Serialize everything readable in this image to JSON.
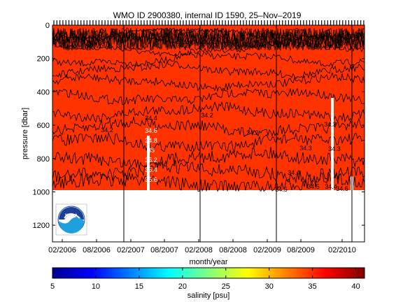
{
  "chart_data": {
    "type": "heatmap",
    "title": "WMO ID 2900380, internal ID 1590, 25–Nov–2019",
    "xlabel": "month/year",
    "ylabel": "pressure [dbar]",
    "colorbar_label": "salinity [psu]",
    "x_ticks": [
      "02/2006",
      "08/2006",
      "02/2007",
      "08/2007",
      "02/2008",
      "08/2008",
      "02/2009",
      "08/2009",
      "02/2010"
    ],
    "y_ticks": [
      "0",
      "200",
      "400",
      "600",
      "800",
      "1000",
      "1200"
    ],
    "y_range": [
      0,
      1300
    ],
    "y_reversed": true,
    "data_depth_max": 1000,
    "colorbar_ticks": [
      "5",
      "10",
      "15",
      "20",
      "25",
      "30",
      "35",
      "40"
    ],
    "colorbar_range": [
      5,
      41
    ],
    "colormap": [
      "#00008f",
      "#0000ff",
      "#0080ff",
      "#00ffff",
      "#80ff80",
      "#ffff00",
      "#ff8000",
      "#ff0000",
      "#800000"
    ],
    "field_color": "#ff3300",
    "contour_labels": [
      "34.6",
      "34.2",
      "34.2",
      "34.4",
      "34.6",
      "34.8",
      "35",
      "35.2",
      "35.4",
      "35.6",
      "34.2",
      "34.2",
      "34.3",
      "34.3",
      "34.4",
      "34.5",
      "34.5",
      "34.4",
      "34.6",
      "34.3"
    ],
    "logo": "NOAA"
  }
}
